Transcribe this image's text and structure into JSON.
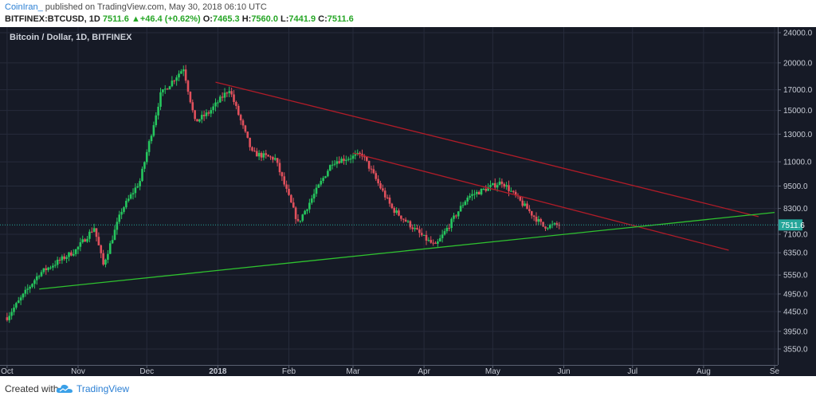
{
  "header": {
    "author": "CoinIran_",
    "published": "published on TradingView.com, May 30, 2018 06:10 UTC",
    "symbol": "BITFINEX:BTCUSD, 1D",
    "last": "7511.6",
    "change": "+46.4 (+0.62%)",
    "o_label": "O:",
    "o": "7465.3",
    "h_label": "H:",
    "h": "7560.0",
    "l_label": "L:",
    "l": "7441.9",
    "c_label": "C:",
    "c": "7511.6"
  },
  "footer": {
    "created": "Created with",
    "brand": "TradingView"
  },
  "colors": {
    "background": "#161a26",
    "grid": "#262b3b",
    "up": "#26c65e",
    "down": "#e0505c",
    "resistance": "#b01c28",
    "support": "#2fc22f",
    "price_line": "#26a69a"
  },
  "chart_data": {
    "type": "candlestick",
    "title": "Bitcoin / Dollar, 1D, BITFINEX",
    "scale": "log",
    "y_ticks": [
      "24000.0",
      "20000.0",
      "17000.0",
      "15000.0",
      "13000.0",
      "11000.0",
      "9500.0",
      "8300.0",
      "7100.0",
      "6350.0",
      "5550.0",
      "4950.0",
      "4450.0",
      "3950.0",
      "3550.0"
    ],
    "x_ticks": [
      "Oct",
      "Nov",
      "Dec",
      "2018",
      "Feb",
      "Mar",
      "Apr",
      "May",
      "Jun",
      "Jul",
      "Aug",
      "Se"
    ],
    "last_price_label": "7511.6",
    "last_price": 7511.6,
    "series": {
      "dates": [
        "2017-10-01",
        "2017-10-15",
        "2017-10-31",
        "2017-11-08",
        "2017-11-12",
        "2017-11-20",
        "2017-11-28",
        "2017-12-07",
        "2017-12-17",
        "2017-12-22",
        "2017-12-28",
        "2018-01-06",
        "2018-01-16",
        "2018-01-26",
        "2018-02-05",
        "2018-02-20",
        "2018-03-05",
        "2018-03-18",
        "2018-04-01",
        "2018-04-06",
        "2018-04-20",
        "2018-05-05",
        "2018-05-15",
        "2018-05-23",
        "2018-05-30"
      ],
      "close": [
        4300,
        5600,
        6450,
        7400,
        5900,
        8200,
        9800,
        16500,
        19400,
        14000,
        14800,
        17100,
        11600,
        11200,
        7600,
        11000,
        11500,
        8300,
        6950,
        6600,
        8900,
        9750,
        8400,
        7450,
        7512
      ]
    },
    "trendlines": [
      {
        "color": "resistance",
        "points": [
          [
            "2017-12-31",
            17800
          ],
          [
            "2018-08-25",
            7900
          ]
        ]
      },
      {
        "color": "resistance",
        "points": [
          [
            "2018-03-01",
            11600
          ],
          [
            "2018-08-12",
            6450
          ]
        ]
      },
      {
        "color": "support",
        "points": [
          [
            "2017-10-15",
            5100
          ],
          [
            "2018-09-01",
            8100
          ]
        ]
      }
    ]
  }
}
